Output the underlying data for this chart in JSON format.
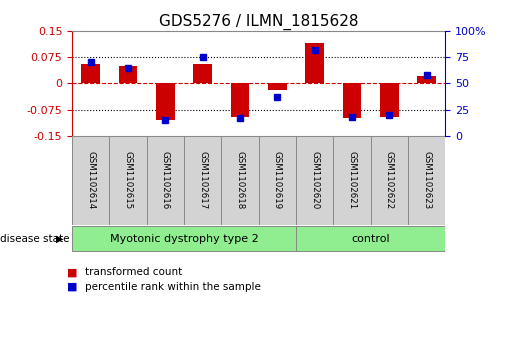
{
  "title": "GDS5276 / ILMN_1815628",
  "samples": [
    "GSM1102614",
    "GSM1102615",
    "GSM1102616",
    "GSM1102617",
    "GSM1102618",
    "GSM1102619",
    "GSM1102620",
    "GSM1102621",
    "GSM1102622",
    "GSM1102623"
  ],
  "red_values": [
    0.055,
    0.05,
    -0.105,
    0.055,
    -0.095,
    -0.02,
    0.115,
    -0.1,
    -0.095,
    0.02
  ],
  "blue_values": [
    70,
    65,
    15,
    75,
    17,
    37,
    82,
    18,
    20,
    58
  ],
  "ylim_left": [
    -0.15,
    0.15
  ],
  "ylim_right": [
    0,
    100
  ],
  "yticks_left": [
    -0.15,
    -0.075,
    0,
    0.075,
    0.15
  ],
  "yticks_right": [
    0,
    25,
    50,
    75,
    100
  ],
  "ytick_labels_left": [
    "-0.15",
    "-0.075",
    "0",
    "0.075",
    "0.15"
  ],
  "ytick_labels_right": [
    "0",
    "25",
    "50",
    "75",
    "100%"
  ],
  "groups": [
    {
      "label": "Myotonic dystrophy type 2",
      "start": 0,
      "end": 5,
      "color": "#90EE90"
    },
    {
      "label": "control",
      "start": 6,
      "end": 9,
      "color": "#90EE90"
    }
  ],
  "disease_state_label": "disease state",
  "legend_red": "transformed count",
  "legend_blue": "percentile rank within the sample",
  "bar_color_red": "#CC0000",
  "bar_color_blue": "#0000CC",
  "zero_line_color": "#CC0000",
  "grid_color": "#000000",
  "bg_color": "#ffffff",
  "label_area_color": "#d3d3d3",
  "dotted_values": [
    0.075,
    -0.075
  ],
  "title_fontsize": 11,
  "tick_fontsize": 8,
  "bar_width": 0.5,
  "box_border_color": "#888888"
}
